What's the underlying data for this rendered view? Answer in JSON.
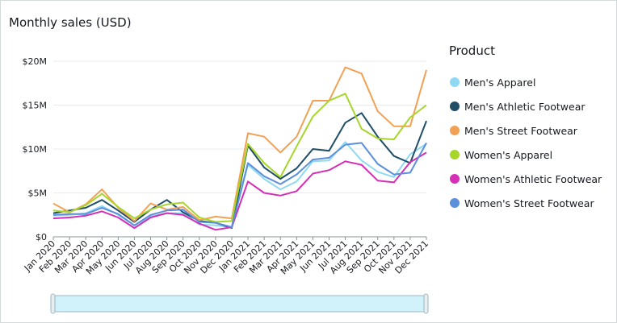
{
  "chart_data": {
    "type": "line",
    "title": "Monthly sales (USD)",
    "xlabel": "",
    "ylabel": "",
    "ylim": [
      0,
      20000000
    ],
    "y_ticks": [
      {
        "value": 0,
        "label": "$0"
      },
      {
        "value": 5000000,
        "label": "$5M"
      },
      {
        "value": 10000000,
        "label": "$10M"
      },
      {
        "value": 15000000,
        "label": "$15M"
      },
      {
        "value": 20000000,
        "label": "$20M"
      }
    ],
    "grid": true,
    "legend_position": "right",
    "legend_title": "Product",
    "categories": [
      "Jan 2020",
      "Feb 2020",
      "Mar 2020",
      "Apr 2020",
      "May 2020",
      "Jun 2020",
      "Jul 2020",
      "Aug 2020",
      "Sep 2020",
      "Oct 2020",
      "Nov 2020",
      "Dec 2020",
      "Jan 2021",
      "Feb 2021",
      "Mar 2021",
      "Apr 2021",
      "May 2021",
      "Jun 2021",
      "Jul 2021",
      "Aug 2021",
      "Sep 2021",
      "Oct 2021",
      "Nov 2021",
      "Dec 2021"
    ],
    "series": [
      {
        "name": "Men's Apparel",
        "color": "#8fd9f2",
        "values": [
          2400000,
          2500000,
          2700000,
          3500000,
          2500000,
          1300000,
          2300000,
          2700000,
          2700000,
          1400000,
          1300000,
          1100000,
          8200000,
          6600000,
          5400000,
          6300000,
          8600000,
          8700000,
          10800000,
          8700000,
          7400000,
          6800000,
          9400000,
          10600000
        ]
      },
      {
        "name": "Men's Athletic Footwear",
        "color": "#1f4e66",
        "values": [
          2700000,
          3000000,
          3300000,
          4200000,
          3000000,
          1700000,
          3100000,
          4200000,
          2800000,
          1800000,
          1600000,
          1000000,
          10400000,
          7900000,
          6600000,
          7800000,
          10000000,
          9800000,
          13000000,
          14100000,
          11400000,
          9200000,
          8400000,
          13200000
        ]
      },
      {
        "name": "Men's Street Footwear",
        "color": "#f2a154",
        "values": [
          3800000,
          2800000,
          3700000,
          5400000,
          3300000,
          1800000,
          3800000,
          3100000,
          3400000,
          1900000,
          2300000,
          2100000,
          11800000,
          11400000,
          9600000,
          11400000,
          15500000,
          15500000,
          19300000,
          18600000,
          14300000,
          12600000,
          12600000,
          19000000
        ]
      },
      {
        "name": "Women's Apparel",
        "color": "#a6d62a",
        "values": [
          3000000,
          2800000,
          3600000,
          4900000,
          3400000,
          2100000,
          3100000,
          3700000,
          3900000,
          2200000,
          1700000,
          1800000,
          10600000,
          8400000,
          6800000,
          10300000,
          13700000,
          15500000,
          16300000,
          12300000,
          11200000,
          11100000,
          13600000,
          15000000
        ]
      },
      {
        "name": "Women's Athletic Footwear",
        "color": "#d42fb6",
        "values": [
          2100000,
          2200000,
          2400000,
          2900000,
          2200000,
          1000000,
          2200000,
          2700000,
          2500000,
          1500000,
          800000,
          1100000,
          6300000,
          5000000,
          4700000,
          5200000,
          7200000,
          7600000,
          8600000,
          8200000,
          6400000,
          6200000,
          8500000,
          9600000
        ]
      },
      {
        "name": "Women's Street Footwear",
        "color": "#5b8fdc",
        "values": [
          2500000,
          2600000,
          2600000,
          3300000,
          2600000,
          1300000,
          2500000,
          3000000,
          3100000,
          1700000,
          1600000,
          1100000,
          8400000,
          6900000,
          6000000,
          7100000,
          8800000,
          9000000,
          10500000,
          10700000,
          8300000,
          7100000,
          7300000,
          10700000
        ]
      }
    ]
  }
}
